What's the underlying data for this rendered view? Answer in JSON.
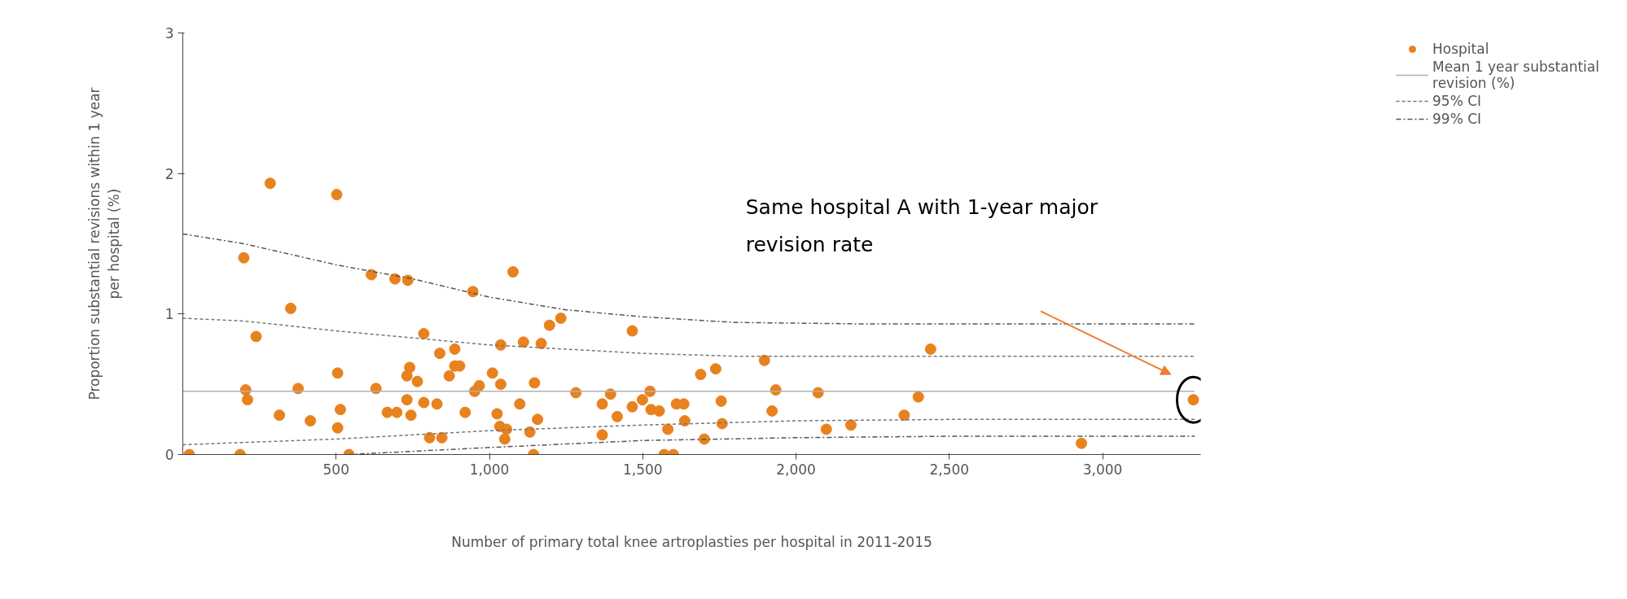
{
  "chart_data": {
    "type": "scatter",
    "xlabel": "Number of primary total knee artroplasties per hospital in 2011-2015",
    "ylabel": "Proportion substantial revisions within 1 year per hospital (%)",
    "xlim": [
      0,
      3320
    ],
    "ylim": [
      0,
      3
    ],
    "xticks": [
      {
        "value": 500,
        "label": "500"
      },
      {
        "value": 1000,
        "label": "1,000"
      },
      {
        "value": 1500,
        "label": "1,500"
      },
      {
        "value": 2000,
        "label": "2,000"
      },
      {
        "value": 2500,
        "label": "2,500"
      },
      {
        "value": 3000,
        "label": "3,000"
      }
    ],
    "yticks": [
      0,
      1,
      2,
      3
    ],
    "grid": false,
    "legend": "top right",
    "annotations": [
      "Same hospital A with 1-year major revision rate"
    ],
    "series": [
      {
        "name": "Hospital",
        "marker": "circle",
        "color": "#e8821e",
        "x": [
          21,
          187,
          199,
          205,
          211,
          239,
          315,
          285,
          352,
          376,
          416,
          502,
          505,
          514,
          505,
          542,
          615,
          630,
          667,
          698,
          692,
          734,
          731,
          740,
          731,
          744,
          765,
          786,
          786,
          805,
          829,
          845,
          838,
          869,
          887,
          887,
          903,
          921,
          946,
          952,
          967,
          1010,
          1025,
          1037,
          1034,
          1050,
          1077,
          1037,
          1111,
          1169,
          1196,
          1233,
          1466,
          1147,
          1282,
          1099,
          1157,
          1368,
          1395,
          1417,
          1466,
          1499,
          1524,
          1527,
          1554,
          1610,
          1634,
          1637,
          1582,
          1368,
          1132,
          1056,
          1144,
          1570,
          1600,
          1689,
          1738,
          1756,
          1759,
          1701,
          1897,
          1934,
          1922,
          2072,
          2099,
          2179,
          2353,
          2399,
          2439,
          2931,
          3296
        ],
        "values": [
          0,
          0,
          1.4,
          0.46,
          0.39,
          0.84,
          0.28,
          1.93,
          1.04,
          0.47,
          0.24,
          1.85,
          0.58,
          0.32,
          0.19,
          0,
          1.28,
          0.47,
          0.3,
          0.3,
          1.25,
          1.24,
          0.39,
          0.62,
          0.56,
          0.28,
          0.52,
          0.86,
          0.37,
          0.12,
          0.36,
          0.12,
          0.72,
          0.56,
          0.63,
          0.75,
          0.63,
          0.3,
          1.16,
          0.45,
          0.49,
          0.58,
          0.29,
          0.5,
          0.2,
          0.11,
          1.3,
          0.78,
          0.8,
          0.79,
          0.92,
          0.97,
          0.88,
          0.51,
          0.44,
          0.36,
          0.25,
          0.36,
          0.43,
          0.27,
          0.34,
          0.39,
          0.45,
          0.32,
          0.31,
          0.36,
          0.36,
          0.24,
          0.18,
          0.14,
          0.16,
          0.18,
          0,
          0,
          0,
          0.57,
          0.61,
          0.38,
          0.22,
          0.11,
          0.67,
          0.46,
          0.31,
          0.44,
          0.18,
          0.21,
          0.28,
          0.41,
          0.75,
          0.08,
          0.39
        ]
      },
      {
        "name": "Mean 1 year substantial revision (%)",
        "type": "line",
        "color": "#b0b0b0",
        "line_style": "solid",
        "x": [
          0,
          3300
        ],
        "values": [
          0.45,
          0.45
        ]
      },
      {
        "name": "95% CI",
        "type": "line",
        "color": "#777777",
        "line_style": "dashed",
        "x": [
          0,
          200,
          500,
          1000,
          1500,
          1800,
          2400,
          3300
        ],
        "values": [
          0.97,
          0.95,
          0.88,
          0.78,
          0.72,
          0.7,
          0.7,
          0.7
        ]
      },
      {
        "type": "line",
        "color": "#777777",
        "line_style": "dashed",
        "x": [
          0,
          500,
          1000,
          1500,
          2000,
          2500,
          3300
        ],
        "values": [
          0.07,
          0.11,
          0.17,
          0.21,
          0.24,
          0.25,
          0.25
        ]
      },
      {
        "name": "99% CI",
        "type": "line",
        "color": "#555555",
        "line_style": "dashdot",
        "x": [
          0,
          200,
          500,
          750,
          1000,
          1250,
          1500,
          1800,
          2200,
          3300
        ],
        "values": [
          1.57,
          1.5,
          1.35,
          1.25,
          1.12,
          1.03,
          0.98,
          0.94,
          0.93,
          0.93
        ]
      },
      {
        "type": "line",
        "color": "#555555",
        "line_style": "dashdot",
        "x": [
          540,
          1000,
          1500,
          2000,
          2500,
          3300
        ],
        "values": [
          0,
          0.05,
          0.1,
          0.12,
          0.13,
          0.13
        ]
      }
    ]
  }
}
